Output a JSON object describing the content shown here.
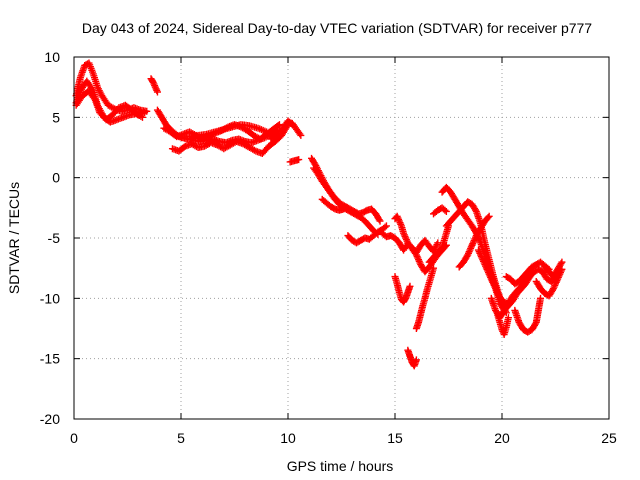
{
  "chart_data": {
    "type": "scatter",
    "title": "Day 043 of 2024, Sidereal Day-to-day VTEC variation (SDTVAR) for receiver p777",
    "xlabel": "GPS time / hours",
    "ylabel": "SDTVAR / TECUs",
    "xlim": [
      0,
      25
    ],
    "ylim": [
      -20,
      10
    ],
    "x_ticks": [
      0,
      5,
      10,
      15,
      20,
      25
    ],
    "y_ticks": [
      10,
      5,
      0,
      -5,
      -10,
      -15,
      -20
    ],
    "x_tick_labels": [
      "0",
      "5",
      "10",
      "15",
      "20",
      "25"
    ],
    "y_tick_labels": [
      "10",
      "5",
      "0",
      "-5",
      "-10",
      "-15",
      "-20"
    ],
    "grid": true,
    "legend": "none",
    "marker": "+",
    "color": "#ff0000",
    "series": [
      {
        "x": [
          0.1,
          0.3,
          0.6,
          0.9,
          1.1,
          1.4,
          1.7,
          2.0,
          2.3,
          2.6,
          2.9,
          3.2
        ],
        "y": [
          6.2,
          7.2,
          8.0,
          7.2,
          6.0,
          5.0,
          4.6,
          4.8,
          5.0,
          5.2,
          5.3,
          5.0
        ]
      },
      {
        "x": [
          0.1,
          0.3,
          0.5,
          0.7,
          0.9,
          1.1,
          1.3,
          1.6,
          1.9,
          2.2,
          2.5,
          2.8,
          3.1,
          3.4
        ],
        "y": [
          6.8,
          8.3,
          9.3,
          9.5,
          8.6,
          7.5,
          6.8,
          6.0,
          5.7,
          5.5,
          5.6,
          5.8,
          5.6,
          5.5
        ]
      },
      {
        "x": [
          0.1,
          0.4,
          0.7,
          1.0,
          1.2,
          1.5,
          1.8,
          2.1,
          2.4,
          2.7,
          3.0,
          3.3
        ],
        "y": [
          6.0,
          6.8,
          7.2,
          6.4,
          5.4,
          4.8,
          5.2,
          5.8,
          6.0,
          5.6,
          5.2,
          5.4
        ]
      },
      {
        "x": [
          3.6,
          3.7,
          3.8,
          3.9
        ],
        "y": [
          8.2,
          7.9,
          7.5,
          7.1
        ]
      },
      {
        "x": [
          3.9,
          4.1,
          4.3,
          4.5,
          4.7,
          4.9,
          5.1,
          5.3,
          5.6,
          5.9,
          6.2,
          6.5,
          6.8,
          7.1,
          7.4,
          7.7,
          8.0,
          8.3,
          8.6,
          8.9,
          9.2,
          9.5
        ],
        "y": [
          5.6,
          5.0,
          4.4,
          4.0,
          3.7,
          3.4,
          3.3,
          3.2,
          3.1,
          3.0,
          3.1,
          3.2,
          3.0,
          2.9,
          3.1,
          3.2,
          3.0,
          2.9,
          3.1,
          3.3,
          3.6,
          3.9
        ]
      },
      {
        "x": [
          4.2,
          4.5,
          4.8,
          5.1,
          5.4,
          5.7,
          6.0,
          6.3,
          6.6,
          6.9,
          7.2,
          7.5,
          7.8,
          8.1,
          8.4,
          8.7,
          9.0,
          9.3,
          9.6
        ],
        "y": [
          4.1,
          3.8,
          3.4,
          3.6,
          3.8,
          3.5,
          3.2,
          3.4,
          3.7,
          3.9,
          4.2,
          4.4,
          4.2,
          3.9,
          3.5,
          3.2,
          3.6,
          4.0,
          4.4
        ]
      },
      {
        "x": [
          4.6,
          4.9,
          5.2,
          5.5,
          5.8,
          6.1,
          6.4,
          6.7,
          7.0,
          7.3,
          7.6,
          7.9,
          8.2,
          8.5,
          8.8,
          9.1,
          9.4,
          9.7,
          10.0
        ],
        "y": [
          2.4,
          2.2,
          2.6,
          2.8,
          2.5,
          2.6,
          2.9,
          2.7,
          2.4,
          2.7,
          3.0,
          2.8,
          2.5,
          2.2,
          2.0,
          2.6,
          3.0,
          3.5,
          4.4
        ]
      },
      {
        "x": [
          5.4,
          5.8,
          6.2,
          6.6,
          7.0,
          7.4,
          7.8,
          8.2,
          8.6,
          9.0
        ],
        "y": [
          3.4,
          3.5,
          3.6,
          3.8,
          4.0,
          4.2,
          4.4,
          4.3,
          4.1,
          3.8
        ]
      },
      {
        "x": [
          9.2,
          9.5,
          9.8,
          10.0,
          10.2
        ],
        "y": [
          3.2,
          3.6,
          4.2,
          4.7,
          4.4
        ]
      },
      {
        "x": [
          10.0,
          10.2,
          10.4,
          10.6
        ],
        "y": [
          4.6,
          4.5,
          4.0,
          3.5
        ]
      },
      {
        "x": [
          10.1,
          10.3,
          10.5
        ],
        "y": [
          1.3,
          1.4,
          1.5
        ]
      },
      {
        "x": [
          11.1,
          11.3,
          11.5,
          11.7,
          11.9,
          12.1,
          12.3,
          12.5,
          12.7,
          12.9,
          13.1,
          13.3,
          13.5,
          13.7,
          13.9,
          14.1,
          14.3
        ],
        "y": [
          1.6,
          1.0,
          0.3,
          -0.4,
          -1.0,
          -1.5,
          -1.9,
          -2.2,
          -2.4,
          -2.6,
          -2.8,
          -3.0,
          -2.9,
          -2.7,
          -2.6,
          -3.0,
          -3.6
        ]
      },
      {
        "x": [
          11.2,
          11.4,
          11.6,
          11.8,
          12.0,
          12.2,
          12.4,
          12.6,
          12.8,
          13.0,
          13.2,
          13.4,
          13.6,
          13.8,
          14.0,
          14.2
        ],
        "y": [
          0.8,
          0.3,
          -0.3,
          -0.8,
          -1.3,
          -1.8,
          -2.2,
          -2.5,
          -2.7,
          -2.9,
          -3.1,
          -3.3,
          -3.6,
          -4.0,
          -4.4,
          -4.7
        ]
      },
      {
        "x": [
          11.6,
          11.8,
          12.0,
          12.2,
          12.4,
          12.6
        ],
        "y": [
          -1.8,
          -2.1,
          -2.4,
          -2.6,
          -2.7,
          -2.6
        ]
      },
      {
        "x": [
          12.8,
          13.0,
          13.2,
          13.4,
          13.6,
          13.8,
          14.0,
          14.2,
          14.4,
          14.6
        ],
        "y": [
          -4.8,
          -5.2,
          -5.4,
          -5.2,
          -5.0,
          -5.1,
          -4.8,
          -4.5,
          -4.3,
          -4.0
        ]
      },
      {
        "x": [
          14.4,
          14.6,
          14.8,
          15.0,
          15.2,
          15.4,
          15.6,
          15.8,
          16.0,
          16.2,
          16.4,
          16.6,
          16.8,
          17.0
        ],
        "y": [
          -4.6,
          -4.9,
          -4.8,
          -5.0,
          -5.4,
          -6.0,
          -5.5,
          -5.8,
          -6.2,
          -5.6,
          -5.2,
          -5.7,
          -6.1,
          -5.4
        ]
      },
      {
        "x": [
          15.0,
          15.1,
          15.2,
          15.3,
          15.4,
          15.6,
          15.8,
          16.0,
          16.2,
          16.4,
          16.6,
          16.8,
          17.0,
          17.2,
          17.4
        ],
        "y": [
          -3.4,
          -3.2,
          -3.6,
          -4.0,
          -4.6,
          -5.4,
          -5.9,
          -6.4,
          -7.2,
          -7.8,
          -7.4,
          -6.9,
          -6.4,
          -6.0,
          -5.6
        ]
      },
      {
        "x": [
          15.0,
          15.1,
          15.2,
          15.3,
          15.4,
          15.5,
          15.6,
          15.7
        ],
        "y": [
          -8.2,
          -8.8,
          -9.5,
          -10.1,
          -10.3,
          -10.0,
          -9.5,
          -9.0
        ]
      },
      {
        "x": [
          15.6,
          15.7,
          15.8,
          15.9,
          16.0
        ],
        "y": [
          -14.3,
          -14.8,
          -15.3,
          -15.6,
          -15.1
        ]
      },
      {
        "x": [
          16.0,
          16.1,
          16.2,
          16.3,
          16.4,
          16.5,
          16.6,
          16.7,
          16.8
        ],
        "y": [
          -12.5,
          -12.0,
          -11.3,
          -10.6,
          -10.0,
          -9.3,
          -8.7,
          -8.1,
          -7.5
        ]
      },
      {
        "x": [
          16.6,
          16.8,
          17.0,
          17.2,
          17.3,
          17.4,
          17.5
        ],
        "y": [
          -7.0,
          -6.6,
          -6.2,
          -5.8,
          -5.2,
          -4.6,
          -4.0
        ]
      },
      {
        "x": [
          16.8,
          17.0,
          17.2,
          17.4
        ],
        "y": [
          -3.0,
          -2.7,
          -2.5,
          -2.8
        ]
      },
      {
        "x": [
          17.2,
          17.4,
          17.6,
          17.8,
          18.0,
          18.2,
          18.4,
          18.6,
          18.8,
          19.0,
          19.2,
          19.4,
          19.6,
          19.8,
          20.0,
          20.2
        ],
        "y": [
          -1.2,
          -0.8,
          -1.2,
          -1.8,
          -2.4,
          -3.0,
          -3.5,
          -4.0,
          -4.6,
          -5.4,
          -6.4,
          -7.6,
          -8.6,
          -9.6,
          -10.2,
          -10.4
        ]
      },
      {
        "x": [
          17.4,
          17.6,
          17.8,
          18.0,
          18.2,
          18.4,
          18.6,
          18.8,
          19.0,
          19.2,
          19.4,
          19.6,
          19.8,
          20.0,
          20.2
        ],
        "y": [
          -4.0,
          -3.6,
          -3.2,
          -2.8,
          -2.4,
          -2.0,
          -2.2,
          -2.8,
          -3.8,
          -5.4,
          -6.8,
          -8.2,
          -9.4,
          -10.4,
          -11.2
        ]
      },
      {
        "x": [
          18.0,
          18.2,
          18.4,
          18.6,
          18.8,
          19.0,
          19.2,
          19.4
        ],
        "y": [
          -7.4,
          -7.0,
          -6.4,
          -5.6,
          -4.8,
          -4.2,
          -3.6,
          -3.2
        ]
      },
      {
        "x": [
          18.9,
          19.1,
          19.3,
          19.5,
          19.7,
          19.9,
          20.1,
          20.3,
          20.5,
          20.7,
          20.9,
          21.1,
          21.3,
          21.5,
          21.7,
          21.9,
          22.1,
          22.3,
          22.5,
          22.7
        ],
        "y": [
          -6.0,
          -6.8,
          -7.6,
          -8.4,
          -9.2,
          -10.4,
          -11.0,
          -10.6,
          -10.2,
          -9.6,
          -9.2,
          -8.8,
          -8.2,
          -7.8,
          -7.6,
          -7.8,
          -8.4,
          -8.6,
          -8.2,
          -7.6
        ]
      },
      {
        "x": [
          19.5,
          19.7,
          19.9,
          20.1,
          20.3,
          20.5,
          20.7,
          20.9,
          21.1,
          21.3
        ],
        "y": [
          -10.0,
          -11.0,
          -11.6,
          -11.0,
          -10.4,
          -9.8,
          -9.4,
          -9.0,
          -8.6,
          -8.2
        ]
      },
      {
        "x": [
          19.8,
          19.9,
          20.0,
          20.1,
          20.2,
          20.3
        ],
        "y": [
          -11.4,
          -12.0,
          -12.6,
          -13.0,
          -12.4,
          -11.6
        ]
      },
      {
        "x": [
          20.2,
          20.4,
          20.6,
          20.8,
          21.0,
          21.2,
          21.4,
          21.6,
          21.8,
          22.0,
          22.2
        ],
        "y": [
          -8.2,
          -8.4,
          -8.8,
          -8.6,
          -8.2,
          -7.8,
          -7.4,
          -7.2,
          -7.0,
          -7.3,
          -7.6
        ]
      },
      {
        "x": [
          20.6,
          20.8,
          21.0,
          21.2,
          21.4,
          21.6,
          21.7,
          21.8
        ],
        "y": [
          -11.0,
          -12.0,
          -12.6,
          -12.8,
          -12.6,
          -12.0,
          -11.0,
          -10.0
        ]
      },
      {
        "x": [
          21.6,
          21.8,
          22.0,
          22.2,
          22.4,
          22.6,
          22.8
        ],
        "y": [
          -8.6,
          -9.2,
          -9.6,
          -9.8,
          -9.2,
          -8.4,
          -7.6
        ]
      },
      {
        "x": [
          22.0,
          22.2,
          22.4,
          22.6,
          22.8
        ],
        "y": [
          -7.4,
          -7.8,
          -8.2,
          -7.6,
          -7.0
        ]
      }
    ]
  }
}
